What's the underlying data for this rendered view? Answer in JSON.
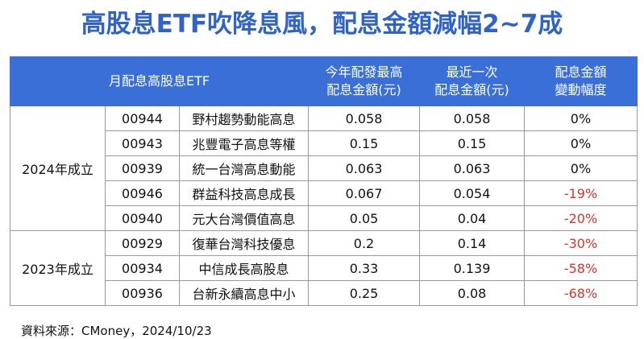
{
  "title": "高股息ETF吹降息風，配息金額減幅2~7成",
  "table": {
    "header": [
      [
        "月配息高股息ETF"
      ],
      [
        "今年配發最高",
        "配息金額(元)"
      ],
      [
        "最近一次",
        "配息金額(元)"
      ],
      [
        "配息金額",
        "變動幅度"
      ]
    ],
    "groups": [
      {
        "label": "2024年成立",
        "rows": [
          [
            "00944",
            "野村趨勢動能高息",
            "0.058",
            "0.058",
            "0%"
          ],
          [
            "00943",
            "兆豐電子高息等權",
            "0.15",
            "0.15",
            "0%"
          ],
          [
            "00939",
            "統一台灣高息動能",
            "0.063",
            "0.063",
            "0%"
          ],
          [
            "00946",
            "群益科技高息成長",
            "0.067",
            "0.054",
            "-19%"
          ],
          [
            "00940",
            "元大台灣價值高息",
            "0.05",
            "0.04",
            "-20%"
          ]
        ]
      },
      {
        "label": "2023年成立",
        "rows": [
          [
            "00929",
            "復華台灣科技優息",
            "0.2",
            "0.14",
            "-30%"
          ],
          [
            "00934",
            "中信成長高股息",
            "0.33",
            "0.139",
            "-58%"
          ],
          [
            "00936",
            "台新永續高息中小",
            "0.25",
            "0.08",
            "-68%"
          ]
        ]
      }
    ]
  },
  "source": "資料來源：CMoney，2024/10/23"
}
